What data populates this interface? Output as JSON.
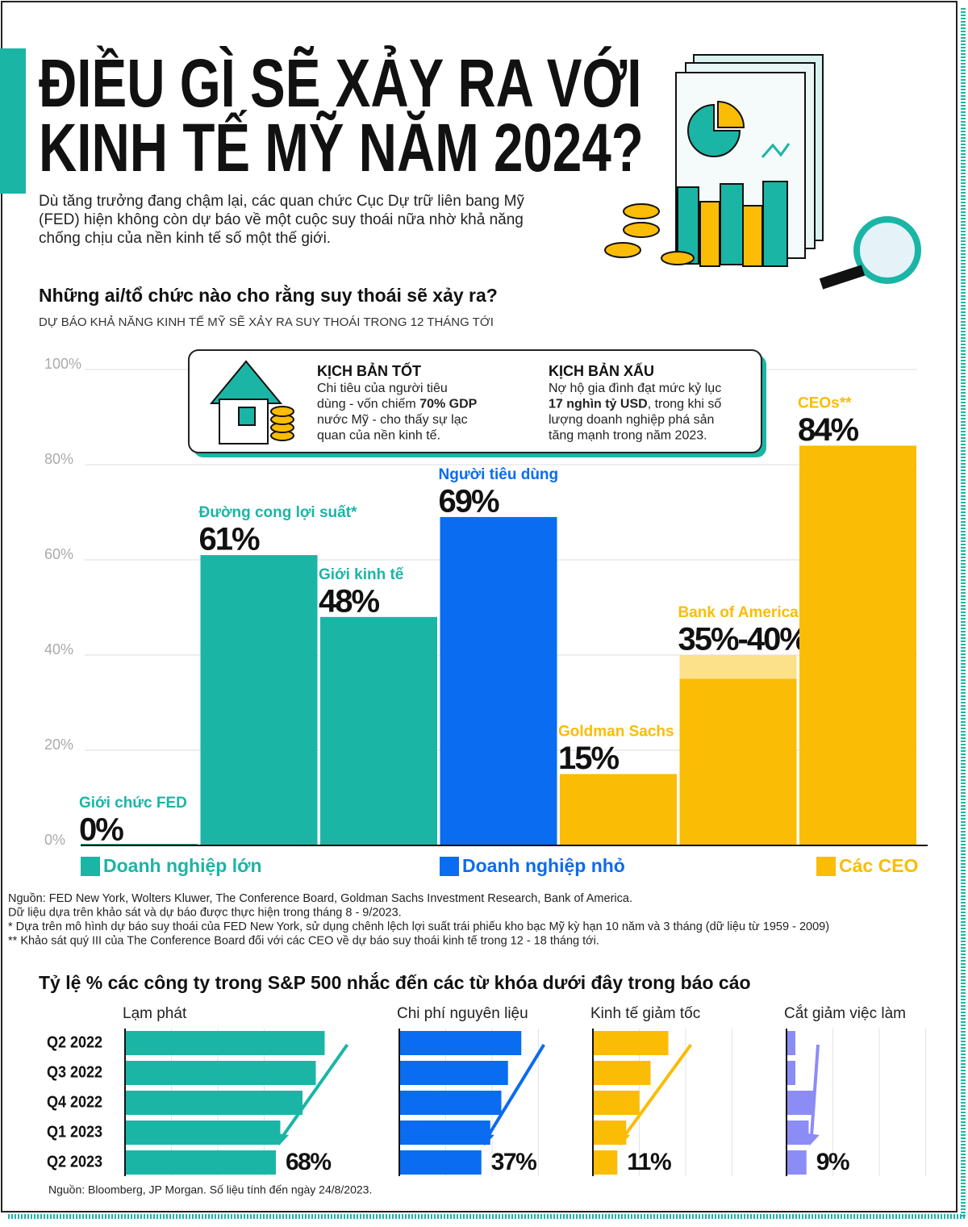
{
  "header": {
    "title_lines": [
      "ĐIỀU GÌ SẼ XẢY RA VỚI",
      "KINH TẾ MỸ NĂM 2024?"
    ],
    "intro_lines": [
      "Dù tăng trưởng đang chậm lại, các quan chức Cục Dự trữ liên bang Mỹ",
      "(FED) hiện không còn dự báo về một cuộc suy thoái nữa nhờ khả năng",
      "chống chịu của nền kinh tế số một thế giới."
    ]
  },
  "chart_data": [
    {
      "type": "bar",
      "title": "Những ai/tổ chức nào cho rằng suy thoái sẽ xảy ra?",
      "subtitle": "DỰ BÁO KHẢ NĂNG KINH TẾ MỸ SẼ XẢY RA SUY THOÁI TRONG 12 THÁNG TỚI",
      "categories": [
        "Giới chức FED",
        "Đường cong lợi suất*",
        "Giới kinh tế",
        "Người tiêu dùng",
        "Goldman Sachs",
        "Bank of America",
        "CEOs**"
      ],
      "values": [
        0,
        61,
        48,
        69,
        15,
        35,
        84
      ],
      "values_high": [
        null,
        null,
        null,
        null,
        null,
        40,
        null
      ],
      "value_labels": [
        "0%",
        "61%",
        "48%",
        "69%",
        "15%",
        "35%-40%",
        "84%"
      ],
      "bar_colors": [
        "#1bb5a6",
        "#1bb5a6",
        "#1bb5a6",
        "#0a6cf0",
        "#fbbc05",
        "#fbbc05",
        "#fbbc05"
      ],
      "range_color": "#fde08a",
      "legend": [
        {
          "name": "Doanh nghiệp lớn",
          "color": "#1bb5a6"
        },
        {
          "name": "Doanh nghiệp nhỏ",
          "color": "#0a6cf0"
        },
        {
          "name": "Các CEO",
          "color": "#fbbc05"
        }
      ],
      "ylim": [
        0,
        100
      ],
      "yticks": [
        {
          "value": 0,
          "label": "0%"
        },
        {
          "value": 20,
          "label": "20%"
        },
        {
          "value": 40,
          "label": "40%"
        },
        {
          "value": 60,
          "label": "60%"
        },
        {
          "value": 80,
          "label": "80%"
        },
        {
          "value": 100,
          "label": "100%"
        }
      ],
      "grid": true,
      "callout": {
        "good": {
          "title": "KỊCH BẢN TỐT",
          "lines": [
            [
              "Chi tiêu của người tiêu"
            ],
            [
              "dùng - vốn chiếm ",
              "70% GDP"
            ],
            [
              "nước Mỹ - cho thấy sự lạc"
            ],
            [
              "quan của nền kinh tế."
            ]
          ]
        },
        "bad": {
          "title": "KỊCH BẢN XẤU",
          "lines": [
            [
              "Nợ hộ gia đình đạt mức kỷ lục"
            ],
            [
              "",
              "17 nghìn tỷ USD",
              ", trong khi số"
            ],
            [
              "lượng doanh nghiệp phá sản"
            ],
            [
              "tăng mạnh trong năm 2023."
            ]
          ]
        }
      },
      "notes": [
        "Nguồn: FED New York, Wolters Kluwer, The Conference Board, Goldman Sachs Investment Research, Bank of America.",
        "Dữ liệu dựa trên khảo sát và dự báo được thực hiện trong tháng 8 - 9/2023.",
        "* Dựa trên mô hình dự báo suy thoái của FED New York, sử dụng chênh lệch lợi suất trái phiếu kho bạc Mỹ kỳ hạn 10 năm và 3 tháng (dữ liệu từ 1959 - 2009)",
        "** Khảo sát quý III của The Conference Board đối với các CEO về dự báo suy thoái kinh tế trong 12 - 18 tháng tới."
      ]
    },
    {
      "type": "bar",
      "orientation": "horizontal",
      "title": "Tỷ lệ % các công ty trong S&P 500 nhắc đến các từ khóa dưới đây trong báo cáo",
      "categories": [
        "Q2 2022",
        "Q3 2022",
        "Q4 2022",
        "Q1 2023",
        "Q2 2023"
      ],
      "xlim": [
        0,
        100
      ],
      "panels": [
        {
          "title": "Lạm phát",
          "color": "#1bb5a6",
          "values": [
            90,
            86,
            80,
            70,
            68
          ],
          "value_labels": [
            null,
            null,
            null,
            null,
            "68%"
          ]
        },
        {
          "title": "Chi phí nguyên liệu",
          "color": "#0a6cf0",
          "values": [
            55,
            49,
            46,
            41,
            37
          ],
          "value_labels": [
            null,
            null,
            null,
            null,
            "37%"
          ]
        },
        {
          "title": "Kinh tế giảm tốc",
          "color": "#fbbc05",
          "values": [
            34,
            26,
            21,
            15,
            11
          ],
          "value_labels": [
            null,
            null,
            null,
            null,
            "11%"
          ]
        },
        {
          "title": "Cắt giảm việc làm",
          "color": "#8c8cf7",
          "values": [
            4,
            4,
            12,
            10,
            9
          ],
          "value_labels": [
            null,
            null,
            null,
            null,
            "9%"
          ]
        }
      ],
      "source": "Nguồn: Bloomberg, JP Morgan. Số liệu tính đến ngày 24/8/2023."
    }
  ]
}
